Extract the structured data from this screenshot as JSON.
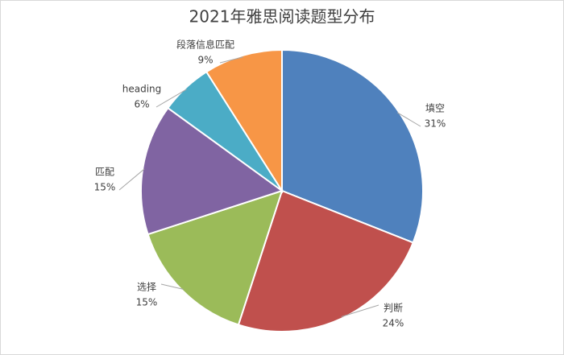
{
  "chart_data": {
    "type": "pie",
    "title": "2021年雅思阅读题型分布",
    "categories": [
      "填空",
      "判断",
      "选择",
      "匹配",
      "heading",
      "段落信息匹配"
    ],
    "values": [
      31,
      24,
      15,
      15,
      6,
      9
    ],
    "value_labels": [
      "31%",
      "24%",
      "15%",
      "15%",
      "6%",
      "9%"
    ],
    "colors": [
      "#4f81bd",
      "#c0504d",
      "#9bbb59",
      "#8064a2",
      "#4bacc6",
      "#f79646"
    ]
  }
}
